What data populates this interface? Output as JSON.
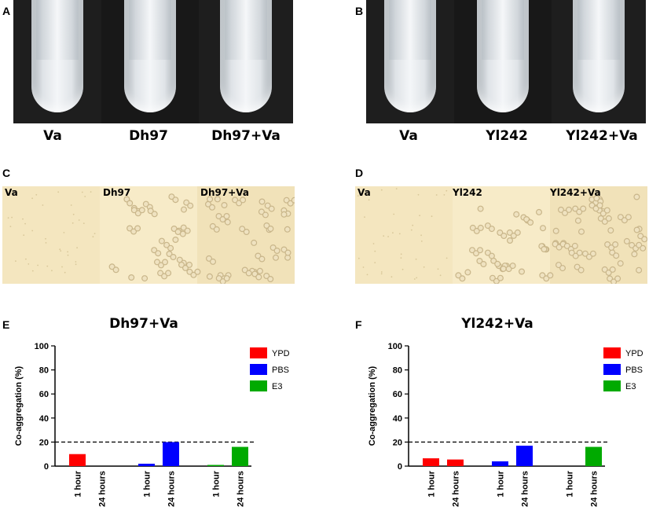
{
  "panels": {
    "A": {
      "letter": "A",
      "tubes": [
        "Va",
        "Dh97",
        "Dh97+Va"
      ]
    },
    "B": {
      "letter": "B",
      "tubes": [
        "Va",
        "Yl242",
        "Yl242+Va"
      ]
    },
    "C": {
      "letter": "C",
      "labels": [
        "Va",
        "Dh97",
        "Dh97+Va"
      ]
    },
    "D": {
      "letter": "D",
      "labels": [
        "Va",
        "Yl242",
        "Yl242+Va"
      ]
    },
    "E": {
      "letter": "E"
    },
    "F": {
      "letter": "F"
    }
  },
  "colors": {
    "YPD": "#ff0000",
    "PBS": "#0000ff",
    "E3": "#00aa00",
    "micro_bg": "#f2e3b8",
    "cell": "#c9b68a"
  },
  "chart_data": [
    {
      "type": "bar",
      "title": "Dh97+Va",
      "ylabel": "Co-aggregation (%)",
      "ylim": [
        0,
        100
      ],
      "yticks": [
        0,
        20,
        40,
        60,
        80,
        100
      ],
      "categories": [
        "1 hour",
        "24 hours",
        "1 hour",
        "24 hours",
        "1 hour",
        "24 hours"
      ],
      "groups": [
        "YPD",
        "PBS",
        "E3"
      ],
      "values": [
        10,
        0,
        2,
        20,
        1,
        16
      ],
      "reference_line": 20,
      "legend": [
        "YPD",
        "PBS",
        "E3"
      ],
      "legend_position": "top-right"
    },
    {
      "type": "bar",
      "title": "Yl242+Va",
      "ylabel": "Co-aggregation (%)",
      "ylim": [
        0,
        100
      ],
      "yticks": [
        0,
        20,
        40,
        60,
        80,
        100
      ],
      "categories": [
        "1 hour",
        "24 hours",
        "1 hour",
        "24 hours",
        "1 hour",
        "24 hours"
      ],
      "groups": [
        "YPD",
        "PBS",
        "E3"
      ],
      "values": [
        6.5,
        5.5,
        4,
        17,
        0,
        16
      ],
      "reference_line": 20,
      "legend": [
        "YPD",
        "PBS",
        "E3"
      ],
      "legend_position": "top-right"
    }
  ]
}
